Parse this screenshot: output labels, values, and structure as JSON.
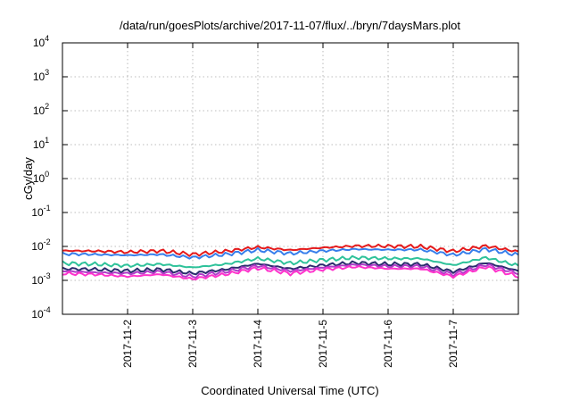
{
  "chart_data": {
    "type": "line",
    "title": "/data/run/goesPlots/archive/2017-11-07/flux/../bryn/7daysMars.plot",
    "xlabel": "Coordinated Universal Time (UTC)",
    "ylabel": "cGy/day",
    "yscale": "log",
    "ylim": [
      0.0001,
      10000
    ],
    "y_ticks": [
      {
        "base": "10",
        "exp": "-4",
        "value": 0.0001
      },
      {
        "base": "10",
        "exp": "-3",
        "value": 0.001
      },
      {
        "base": "10",
        "exp": "-2",
        "value": 0.01
      },
      {
        "base": "10",
        "exp": "-1",
        "value": 0.1
      },
      {
        "base": "10",
        "exp": "0",
        "value": 1
      },
      {
        "base": "10",
        "exp": "1",
        "value": 10
      },
      {
        "base": "10",
        "exp": "2",
        "value": 100
      },
      {
        "base": "10",
        "exp": "3",
        "value": 1000
      },
      {
        "base": "10",
        "exp": "4",
        "value": 10000
      }
    ],
    "xlim": [
      "2017-11-01",
      "2017-11-08"
    ],
    "x_ticks": [
      "2017-11-2",
      "2017-11-3",
      "2017-11-4",
      "2017-11-5",
      "2017-11-6",
      "2017-11-7"
    ],
    "x_tick_dates": [
      "2017-11-02",
      "2017-11-03",
      "2017-11-04",
      "2017-11-05",
      "2017-11-06",
      "2017-11-07"
    ],
    "grid": true,
    "x": [
      "2017-11-01",
      "2017-11-01 12:00",
      "2017-11-02",
      "2017-11-02 12:00",
      "2017-11-03",
      "2017-11-03 12:00",
      "2017-11-04",
      "2017-11-04 12:00",
      "2017-11-05",
      "2017-11-05 12:00",
      "2017-11-06",
      "2017-11-06 12:00",
      "2017-11-07",
      "2017-11-07 12:00",
      "2017-11-08"
    ],
    "series": [
      {
        "color": "#e41a1c",
        "values": [
          0.0075,
          0.0073,
          0.0068,
          0.0074,
          0.0058,
          0.0072,
          0.0095,
          0.0078,
          0.0092,
          0.0103,
          0.0102,
          0.0099,
          0.0072,
          0.0103,
          0.007
        ]
      },
      {
        "color": "#377eeb",
        "values": [
          0.006,
          0.0058,
          0.0055,
          0.0058,
          0.0047,
          0.0058,
          0.0078,
          0.0062,
          0.0074,
          0.0083,
          0.008,
          0.008,
          0.0056,
          0.0083,
          0.0056
        ]
      },
      {
        "color": "#2ec29a",
        "values": [
          0.0032,
          0.003,
          0.0027,
          0.003,
          0.0024,
          0.003,
          0.0044,
          0.0032,
          0.004,
          0.0047,
          0.0044,
          0.0044,
          0.0028,
          0.0047,
          0.0027
        ]
      },
      {
        "color": "#2b2b6e",
        "values": [
          0.0022,
          0.0021,
          0.0019,
          0.0021,
          0.0016,
          0.0021,
          0.0031,
          0.0022,
          0.0028,
          0.0033,
          0.003,
          0.003,
          0.0018,
          0.0033,
          0.0019
        ]
      },
      {
        "color": "#b03cc9",
        "values": [
          0.0019,
          0.0017,
          0.0016,
          0.0018,
          0.0013,
          0.0018,
          0.0027,
          0.0019,
          0.0024,
          0.0029,
          0.0026,
          0.0026,
          0.0015,
          0.0029,
          0.0016
        ]
      },
      {
        "color": "#ff33cc",
        "values": [
          0.0016,
          0.0015,
          0.0013,
          0.0015,
          0.0011,
          0.0015,
          0.0023,
          0.0016,
          0.0021,
          0.0025,
          0.0022,
          0.0022,
          0.0013,
          0.0025,
          0.0013
        ]
      }
    ]
  }
}
